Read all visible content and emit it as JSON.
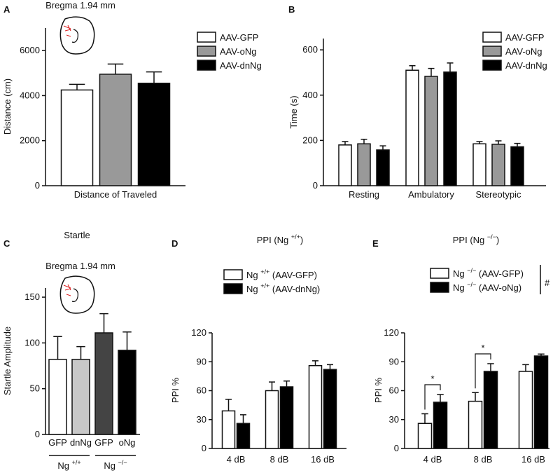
{
  "chart_data": [
    {
      "type": "grouped-bar",
      "panel": "A",
      "annotation": "Bregma 1.94 mm",
      "ylabel": "Distance (cm)",
      "categories": [
        "Distance of Traveled"
      ],
      "series": [
        {
          "name": "AAV-GFP",
          "color": "#ffffff",
          "values": [
            4250
          ],
          "errors": [
            250
          ]
        },
        {
          "name": "AAV-oNg",
          "color": "#999999",
          "values": [
            4950
          ],
          "errors": [
            450
          ]
        },
        {
          "name": "AAV-dnNg",
          "color": "#000000",
          "values": [
            4550
          ],
          "errors": [
            500
          ]
        }
      ],
      "ylim": [
        0,
        7000
      ],
      "yticks": [
        0,
        2000,
        4000,
        6000
      ],
      "legend": "upper right"
    },
    {
      "type": "grouped-bar",
      "panel": "B",
      "ylabel": "Time (s)",
      "categories": [
        "Resting",
        "Ambulatory",
        "Stereotypic"
      ],
      "series": [
        {
          "name": "AAV-GFP",
          "color": "#ffffff",
          "values": [
            180,
            510,
            185
          ],
          "errors": [
            15,
            20,
            10
          ]
        },
        {
          "name": "AAV-oNg",
          "color": "#999999",
          "values": [
            185,
            483,
            183
          ],
          "errors": [
            20,
            35,
            15
          ]
        },
        {
          "name": "AAV-dnNg",
          "color": "#000000",
          "values": [
            158,
            502,
            172
          ],
          "errors": [
            18,
            40,
            15
          ]
        }
      ],
      "ylim": [
        0,
        650
      ],
      "yticks": [
        0,
        200,
        400,
        600
      ],
      "legend": "upper right"
    },
    {
      "type": "bar",
      "panel": "C",
      "title": "Startle",
      "annotation": "Bregma 1.94 mm",
      "ylabel": "Startle Amplitude",
      "categories": [
        "GFP",
        "dnNg",
        "GFP",
        "oNg"
      ],
      "groups": [
        [
          {
            "text": "Ng "
          },
          {
            "text": "+/+",
            "sup": true
          }
        ],
        [
          {
            "text": "Ng "
          },
          {
            "text": "−/−",
            "sup": true
          }
        ]
      ],
      "values": [
        82,
        82,
        111,
        92
      ],
      "errors": [
        25,
        14,
        21,
        20
      ],
      "colors": [
        "#ffffff",
        "#c8c8c8",
        "#444444",
        "#000000"
      ],
      "ylim": [
        0,
        160
      ],
      "yticks": [
        0,
        50,
        100,
        150
      ]
    },
    {
      "type": "grouped-bar",
      "panel": "D",
      "title": [
        {
          "text": "PPI (Ng "
        },
        {
          "text": "+/+",
          "sup": true
        },
        {
          "text": ")"
        }
      ],
      "ylabel": "PPI %",
      "categories": [
        "4 dB",
        "8 dB",
        "16 dB"
      ],
      "series": [
        {
          "name": [
            {
              "text": "Ng "
            },
            {
              "text": "+/+",
              "sup": true
            },
            {
              "text": " (AAV-GFP)"
            }
          ],
          "color": "#ffffff",
          "values": [
            39,
            60,
            86
          ],
          "errors": [
            12,
            9,
            5
          ]
        },
        {
          "name": [
            {
              "text": "Ng "
            },
            {
              "text": "+/+",
              "sup": true
            },
            {
              "text": " (AAV-dnNg)"
            }
          ],
          "color": "#000000",
          "values": [
            26,
            64,
            82
          ],
          "errors": [
            9,
            6,
            5
          ]
        }
      ],
      "ylim": [
        0,
        120
      ],
      "yticks": [
        0,
        30,
        60,
        90,
        120
      ],
      "legend": "top"
    },
    {
      "type": "grouped-bar",
      "panel": "E",
      "title": [
        {
          "text": "PPI (Ng "
        },
        {
          "text": "−/−",
          "sup": true
        },
        {
          "text": ")"
        }
      ],
      "ylabel": "PPI %",
      "categories": [
        "4 dB",
        "8 dB",
        "16 dB"
      ],
      "series": [
        {
          "name": [
            {
              "text": "Ng "
            },
            {
              "text": "−/−",
              "sup": true
            },
            {
              "text": " (AAV-GFP)"
            }
          ],
          "color": "#ffffff",
          "values": [
            26,
            49,
            80
          ],
          "errors": [
            10,
            9,
            7
          ]
        },
        {
          "name": [
            {
              "text": "Ng "
            },
            {
              "text": "−/−",
              "sup": true
            },
            {
              "text": " (AAV-oNg)"
            }
          ],
          "color": "#000000",
          "values": [
            48,
            80,
            96
          ],
          "errors": [
            8,
            8,
            2
          ]
        }
      ],
      "ylim": [
        0,
        120
      ],
      "yticks": [
        0,
        30,
        60,
        90,
        120
      ],
      "legend": "top",
      "significance": [
        "*",
        "*"
      ],
      "legend_mark": "#"
    }
  ]
}
